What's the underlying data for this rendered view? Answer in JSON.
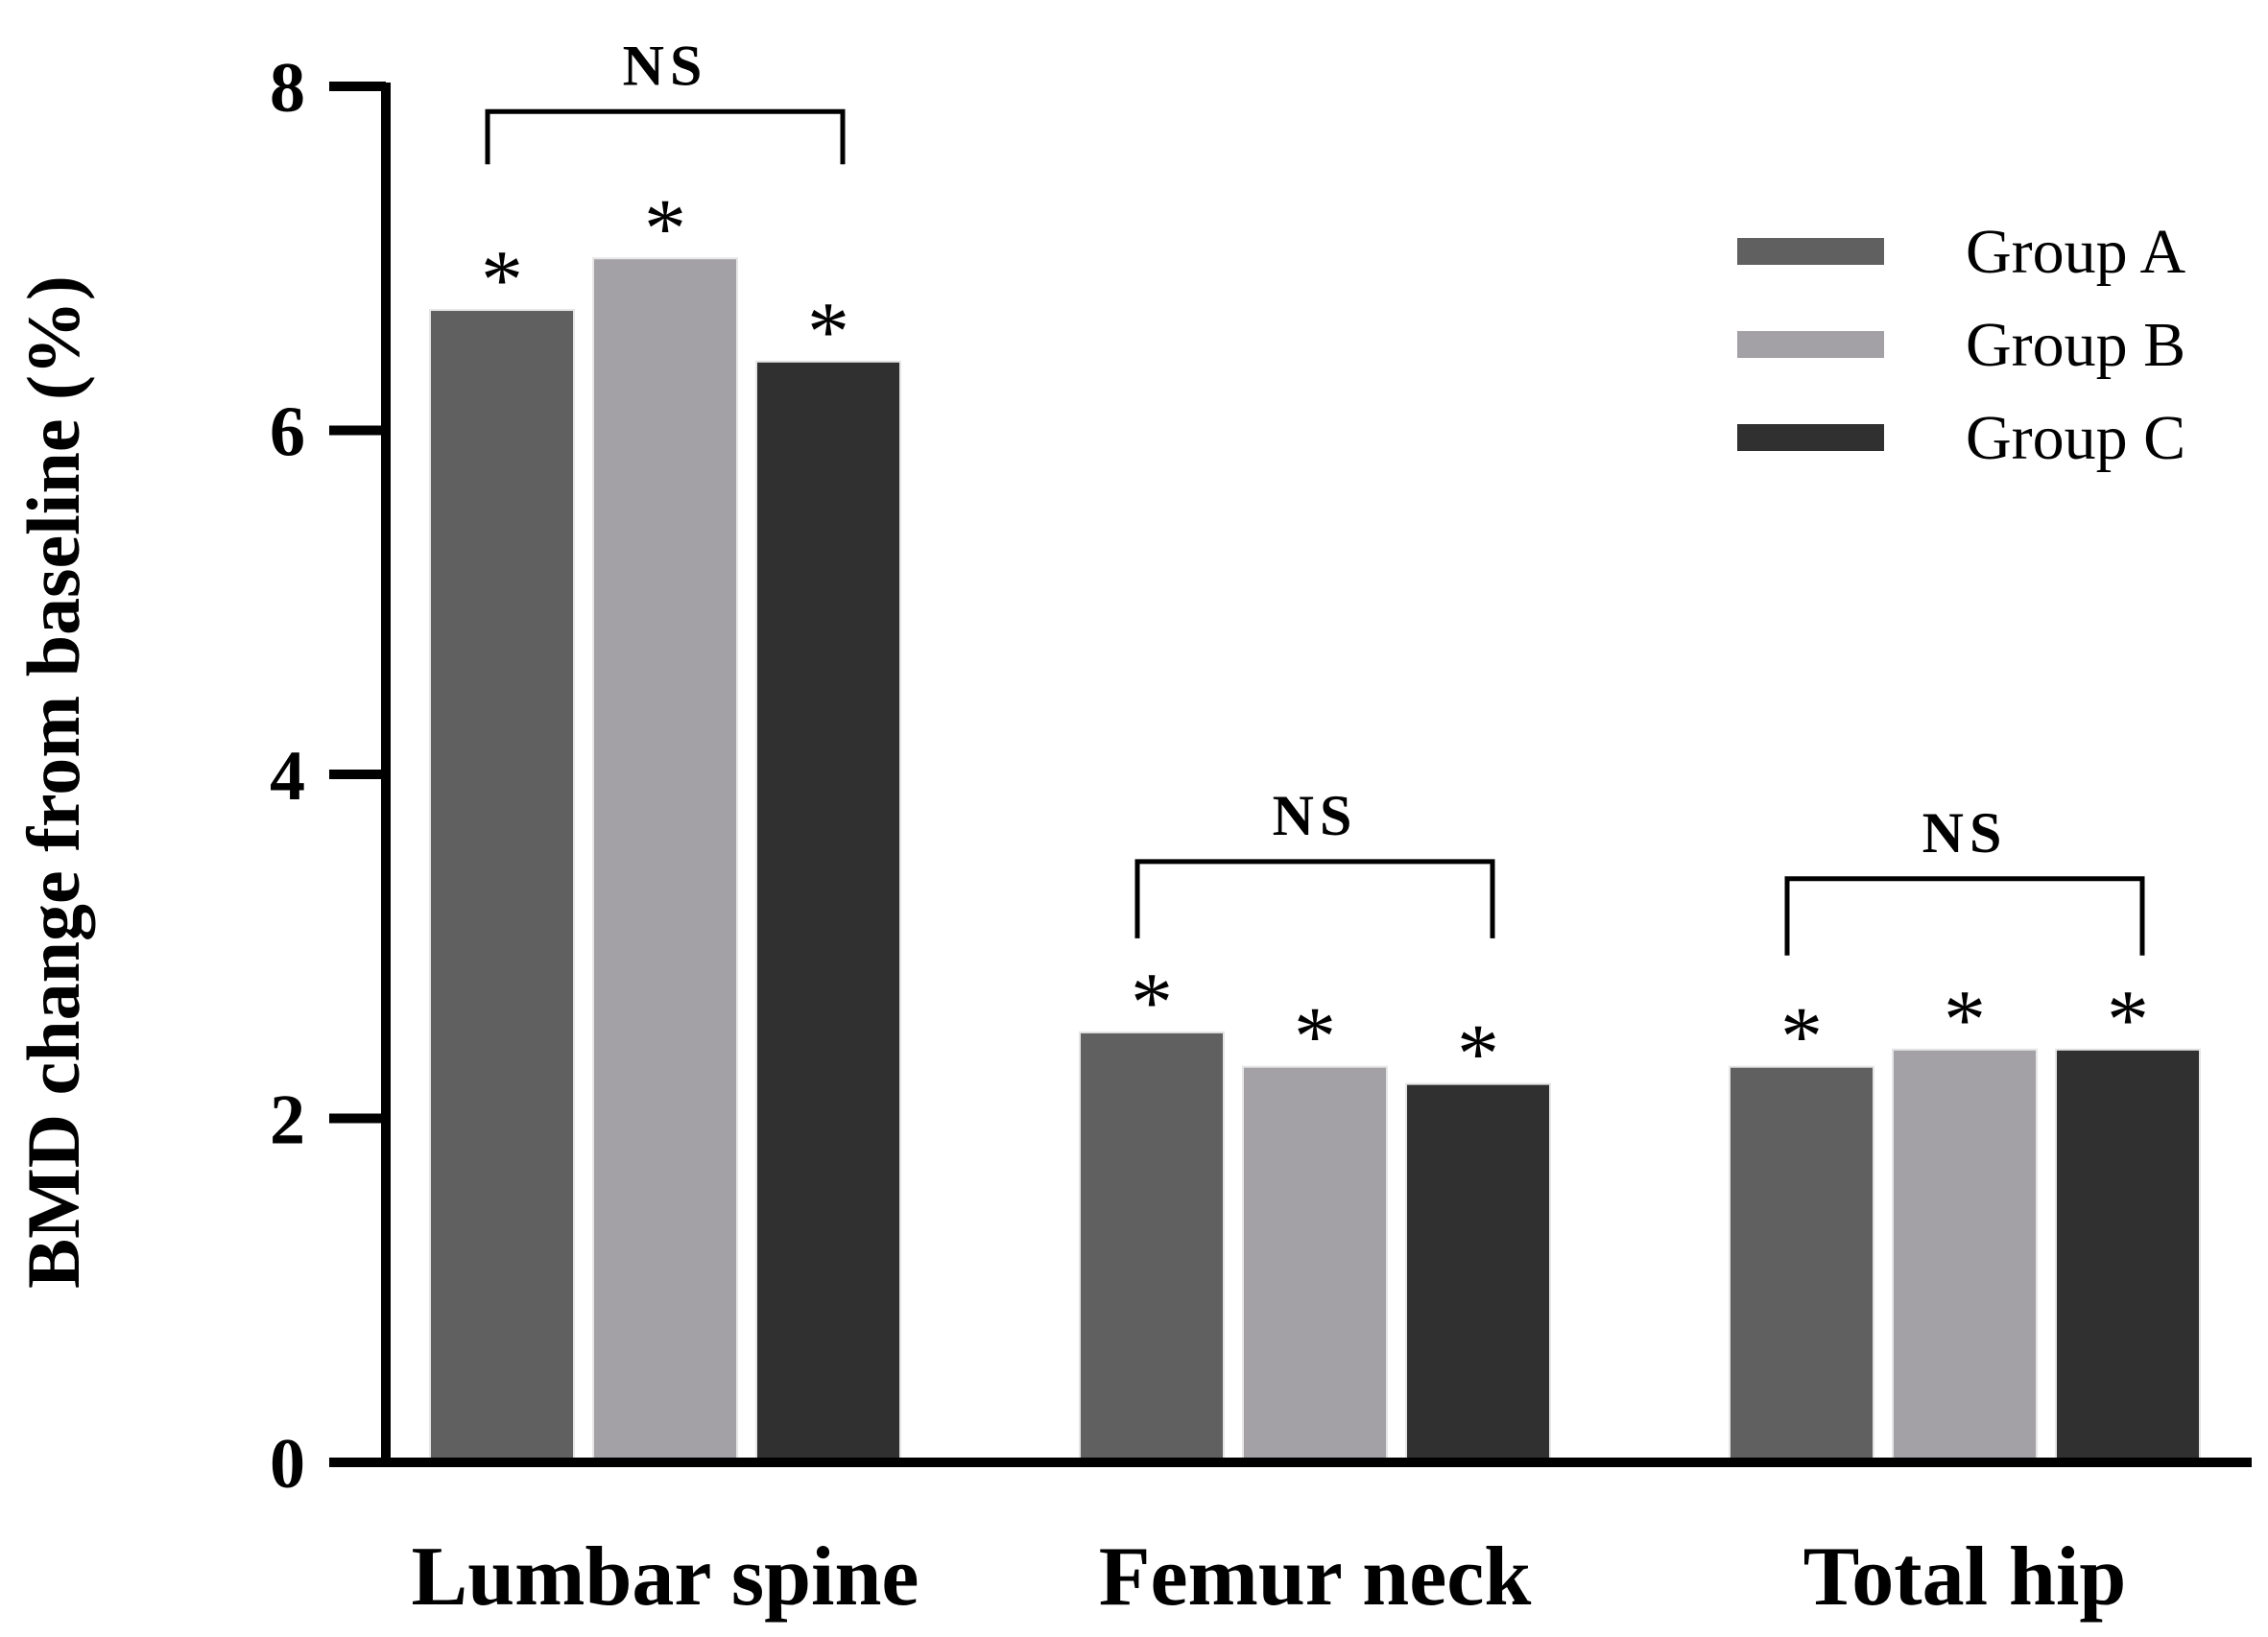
{
  "chart_data": {
    "type": "bar",
    "ylabel": "BMD change from baseline  (%)",
    "xlabel": "",
    "ylim": [
      0,
      8
    ],
    "yticks": [
      0,
      2,
      4,
      6,
      8
    ],
    "grid": false,
    "legend_position": "top-right",
    "categories": [
      "Lumbar spine",
      "Femur neck",
      "Total hip"
    ],
    "series": [
      {
        "name": "Group A",
        "color": "#606060",
        "values": [
          6.7,
          2.5,
          2.3
        ]
      },
      {
        "name": "Group B",
        "color": "#a3a1a6",
        "values": [
          7.0,
          2.3,
          2.4
        ]
      },
      {
        "name": "Group C",
        "color": "#303030",
        "values": [
          6.4,
          2.2,
          2.4
        ]
      }
    ],
    "bar_annotation": "*",
    "comparisons": [
      {
        "category": "Lumbar spine",
        "label": "NS"
      },
      {
        "category": "Femur neck",
        "label": "NS"
      },
      {
        "category": "Total hip",
        "label": "NS"
      }
    ]
  }
}
